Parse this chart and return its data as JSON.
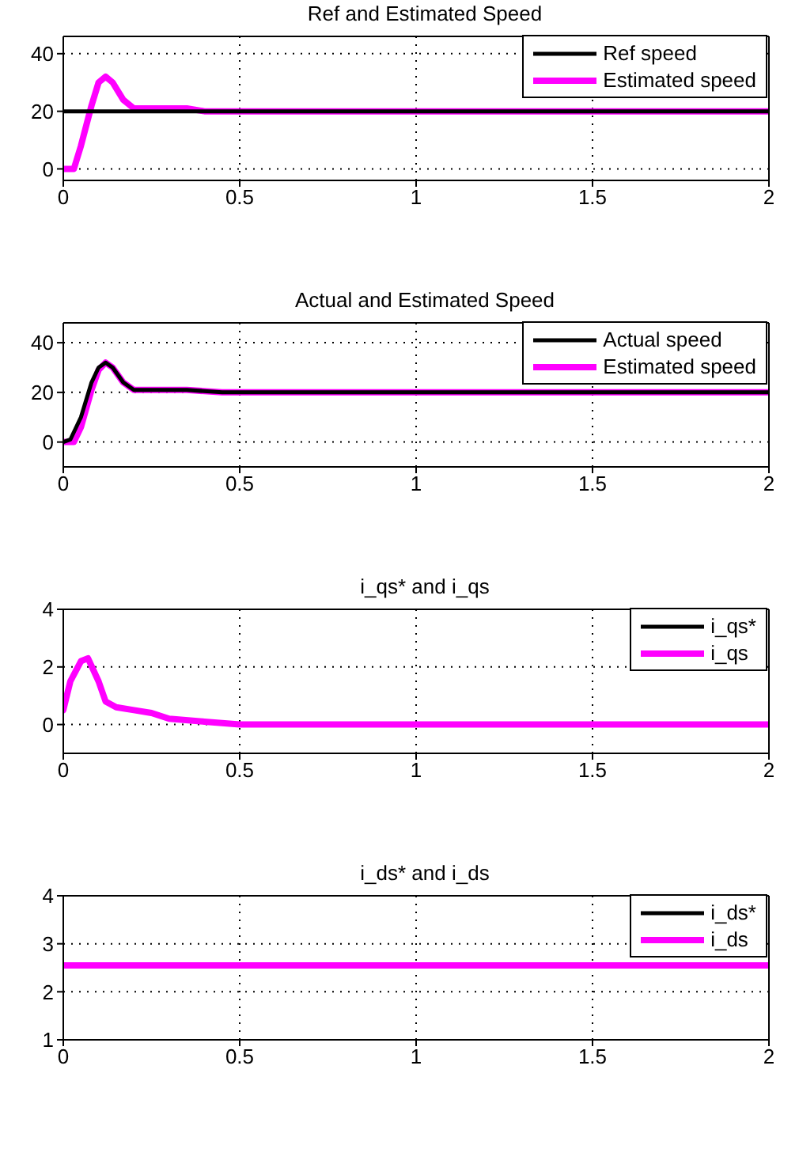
{
  "chart_data": [
    {
      "type": "line",
      "title": "Ref and Estimated Speed",
      "xlim": [
        0,
        2
      ],
      "xticks": [
        0,
        0.5,
        1,
        1.5,
        2
      ],
      "ylim": [
        -4,
        46
      ],
      "yticks": [
        0,
        20,
        40
      ],
      "grid": true,
      "legend": "top right",
      "series": [
        {
          "name": "Ref speed",
          "color": "#000000",
          "x": [
            0,
            0.5,
            1,
            1.5,
            2
          ],
          "values": [
            20,
            20,
            20,
            20,
            20
          ]
        },
        {
          "name": "Estimated speed",
          "color": "#ff00ff",
          "x": [
            0,
            0.03,
            0.05,
            0.08,
            0.1,
            0.12,
            0.14,
            0.17,
            0.2,
            0.25,
            0.35,
            0.4,
            2
          ],
          "values": [
            0,
            0,
            8,
            22,
            30,
            32,
            30,
            24,
            21,
            21,
            21,
            20,
            20
          ]
        }
      ]
    },
    {
      "type": "line",
      "title": "Actual and Estimated Speed",
      "xlim": [
        0,
        2
      ],
      "xticks": [
        0,
        0.5,
        1,
        1.5,
        2
      ],
      "ylim": [
        -10,
        48
      ],
      "yticks": [
        0,
        20,
        40
      ],
      "grid": true,
      "legend": "top right",
      "series": [
        {
          "name": "Actual speed",
          "color": "#000000",
          "x": [
            0,
            0.02,
            0.05,
            0.08,
            0.1,
            0.12,
            0.14,
            0.17,
            0.2,
            0.35,
            0.45,
            2
          ],
          "values": [
            0,
            1,
            10,
            24,
            30,
            32,
            30,
            24,
            21,
            21,
            20,
            20
          ]
        },
        {
          "name": "Estimated speed",
          "color": "#ff00ff",
          "x": [
            0,
            0.03,
            0.05,
            0.08,
            0.1,
            0.12,
            0.14,
            0.17,
            0.2,
            0.35,
            0.45,
            2
          ],
          "values": [
            0,
            0,
            6,
            21,
            29,
            32,
            30,
            24,
            21,
            21,
            20,
            20
          ]
        }
      ]
    },
    {
      "type": "line",
      "title": "i_qs* and i_qs",
      "xlim": [
        0,
        2
      ],
      "xticks": [
        0,
        0.5,
        1,
        1.5,
        2
      ],
      "ylim": [
        -1,
        4
      ],
      "yticks": [
        0,
        2,
        4
      ],
      "grid": true,
      "legend": "top right",
      "series": [
        {
          "name": "i_qs*",
          "color": "#000000"
        },
        {
          "name": "i_qs",
          "color": "#ff00ff",
          "x": [
            0,
            0.02,
            0.05,
            0.07,
            0.1,
            0.12,
            0.15,
            0.2,
            0.25,
            0.3,
            0.4,
            0.5,
            2
          ],
          "values": [
            0.5,
            1.5,
            2.2,
            2.3,
            1.5,
            0.8,
            0.6,
            0.5,
            0.4,
            0.2,
            0.1,
            0,
            0
          ]
        }
      ]
    },
    {
      "type": "line",
      "title": "i_ds* and i_ds",
      "xlim": [
        0,
        2
      ],
      "xticks": [
        0,
        0.5,
        1,
        1.5,
        2
      ],
      "ylim": [
        1,
        4
      ],
      "yticks": [
        1,
        2,
        3,
        4
      ],
      "grid": true,
      "legend": "top right",
      "series": [
        {
          "name": "i_ds*",
          "color": "#000000"
        },
        {
          "name": "i_ds",
          "color": "#ff00ff",
          "x": [
            0,
            2
          ],
          "values": [
            2.55,
            2.55
          ]
        }
      ]
    }
  ]
}
